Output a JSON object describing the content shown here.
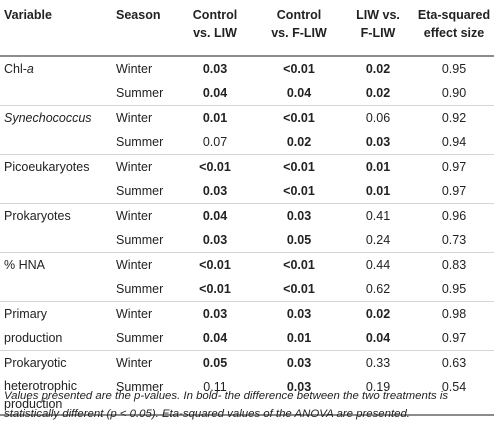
{
  "table": {
    "headers": {
      "variable": "Variable",
      "season": "Season",
      "c1_line1": "Control",
      "c1_line2": "vs. LIW",
      "c2_line1": "Control",
      "c2_line2": "vs. F-LIW",
      "c3_line1": "LIW vs.",
      "c3_line2": "F-LIW",
      "c4_line1": "Eta-squared",
      "c4_line2": "effect size"
    },
    "rows": [
      {
        "variable": "Chl-",
        "variable_italic": "a",
        "season": "Winter",
        "c1": "0.03",
        "c2": "<0.01",
        "c3": "0.02",
        "c4": "0.95"
      },
      {
        "season": "Summer",
        "c1": "0.04",
        "c2": "0.04",
        "c3": "0.02",
        "c4": "0.90"
      },
      {
        "variable": "Synechococcus",
        "season": "Winter",
        "c1": "0.01",
        "c2": "<0.01",
        "c3": "0.06",
        "c4": "0.92"
      },
      {
        "season": "Summer",
        "c1": "0.07",
        "c2": "0.02",
        "c3": "0.03",
        "c4": "0.94"
      },
      {
        "variable": "Picoeukaryotes",
        "season": "Winter",
        "c1": "<0.01",
        "c2": "<0.01",
        "c3": "0.01",
        "c4": "0.97"
      },
      {
        "season": "Summer",
        "c1": "0.03",
        "c2": "<0.01",
        "c3": "0.01",
        "c4": "0.97"
      },
      {
        "variable": "Prokaryotes",
        "season": "Winter",
        "c1": "0.04",
        "c2": "0.03",
        "c3": "0.41",
        "c4": "0.96"
      },
      {
        "season": "Summer",
        "c1": "0.03",
        "c2": "0.05",
        "c3": "0.24",
        "c4": "0.73"
      },
      {
        "variable": "% HNA",
        "season": "Winter",
        "c1": "<0.01",
        "c2": "<0.01",
        "c3": "0.44",
        "c4": "0.83"
      },
      {
        "season": "Summer",
        "c1": "<0.01",
        "c2": "<0.01",
        "c3": "0.62",
        "c4": "0.95"
      },
      {
        "variable": "Primary",
        "season": "Winter",
        "c1": "0.03",
        "c2": "0.03",
        "c3": "0.02",
        "c4": "0.98"
      },
      {
        "variable": "production",
        "season": "Summer",
        "c1": "0.04",
        "c2": "0.01",
        "c3": "0.04",
        "c4": "0.97"
      },
      {
        "variable": "Prokaryotic",
        "season": "Winter",
        "c1": "0.05",
        "c2": "0.03",
        "c3": "0.33",
        "c4": "0.63"
      },
      {
        "variable": "heterotrophic production",
        "season": "Summer",
        "c1": "0.11",
        "c2": "0.03",
        "c3": "0.19",
        "c4": "0.54"
      }
    ]
  },
  "footnote": "Values presented are the p-values. In bold- the difference between the two treatments is statistically different (p < 0.05). Eta-squared values of the ANOVA are presented."
}
